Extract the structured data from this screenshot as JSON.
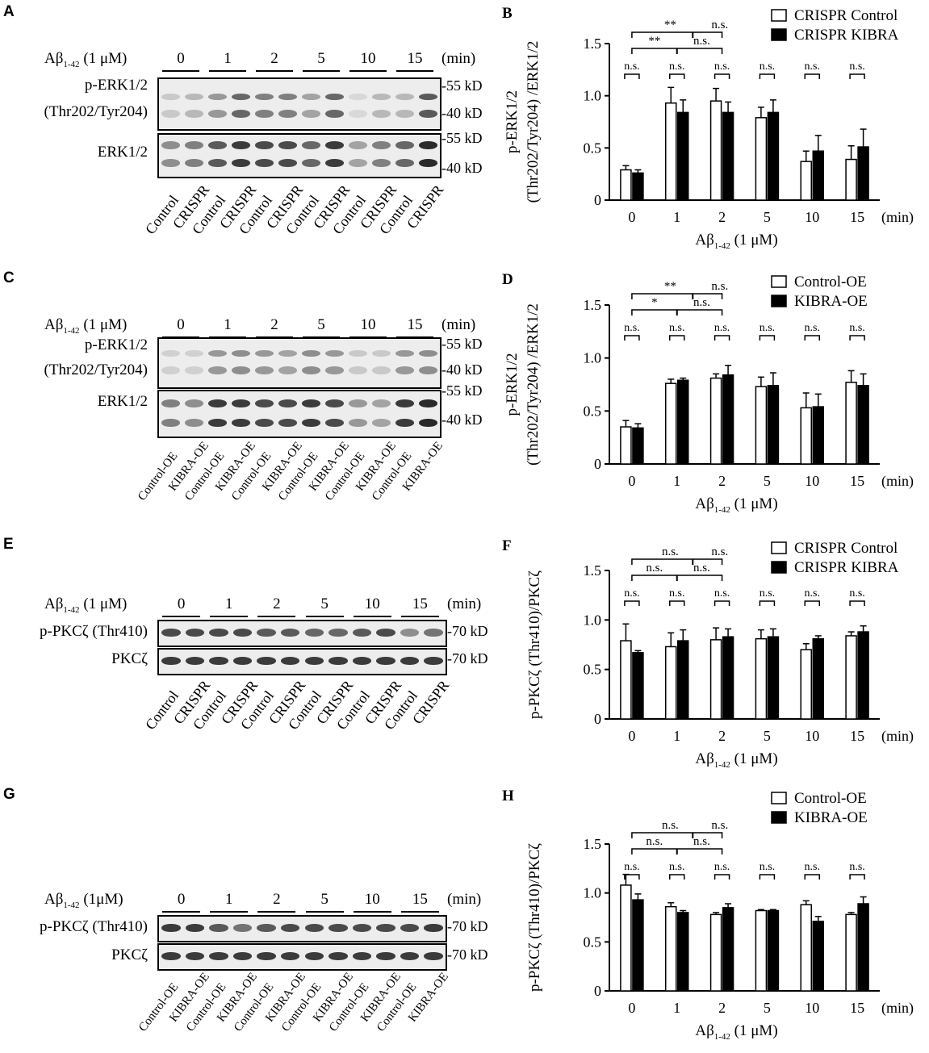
{
  "panels": [
    {
      "letter": "A",
      "treatment": "Aβ",
      "treatment_sub": "1-42",
      "conc": "(1 μM)",
      "unit": "(min)",
      "times": [
        "0",
        "1",
        "2",
        "5",
        "10",
        "15"
      ],
      "rows": [
        {
          "label1": "p-ERK1/2",
          "label2": "(Thr202/Tyr204)",
          "markers": [
            "-55 kD",
            "-40 kD"
          ]
        },
        {
          "label1": "ERK1/2",
          "label2": "",
          "markers": [
            "-55 kD",
            "-40 kD"
          ]
        }
      ],
      "lanes": [
        "Control",
        "CRISPR",
        "Control",
        "CRISPR",
        "Control",
        "CRISPR",
        "Control",
        "CRISPR",
        "Control",
        "CRISPR",
        "Control",
        "CRISPR"
      ]
    },
    {
      "letter": "C",
      "treatment": "Aβ",
      "treatment_sub": "1-42",
      "conc": "(1 μM)",
      "unit": "(min)",
      "times": [
        "0",
        "1",
        "2",
        "5",
        "10",
        "15"
      ],
      "rows": [
        {
          "label1": "p-ERK1/2",
          "label2": "(Thr202/Tyr204)",
          "markers": [
            "-55 kD",
            "-40 kD"
          ]
        },
        {
          "label1": "ERK1/2",
          "label2": "",
          "markers": [
            "-55 kD",
            "-40 kD"
          ]
        }
      ],
      "lanes": [
        "Control-OE",
        "KIBRA-OE",
        "Control-OE",
        "KIBRA-OE",
        "Control-OE",
        "KIBRA-OE",
        "Control-OE",
        "KIBRA-OE",
        "Control-OE",
        "KIBRA-OE",
        "Control-OE",
        "KIBRA-OE"
      ]
    },
    {
      "letter": "E",
      "treatment": "Aβ",
      "treatment_sub": "1-42",
      "conc": "(1 μM)",
      "unit": "(min)",
      "times": [
        "0",
        "1",
        "2",
        "5",
        "10",
        "15"
      ],
      "rows": [
        {
          "label1": "p-PKCζ (Thr410)",
          "label2": "",
          "markers": [
            "-70 kD"
          ]
        },
        {
          "label1": "PKCζ",
          "label2": "",
          "markers": [
            "-70 kD"
          ]
        }
      ],
      "lanes": [
        "Control",
        "CRISPR",
        "Control",
        "CRISPR",
        "Control",
        "CRISPR",
        "Control",
        "CRISPR",
        "Control",
        "CRISPR",
        "Control",
        "CRISPR"
      ]
    },
    {
      "letter": "G",
      "treatment": "Aβ",
      "treatment_sub": "1-42",
      "conc": "(1μM)",
      "unit": "(min)",
      "times": [
        "0",
        "1",
        "2",
        "5",
        "10",
        "15"
      ],
      "rows": [
        {
          "label1": "p-PKCζ (Thr410)",
          "label2": "",
          "markers": [
            "-70 kD"
          ]
        },
        {
          "label1": "PKCζ",
          "label2": "",
          "markers": [
            "-70 kD"
          ]
        }
      ],
      "lanes": [
        "Control-OE",
        "KIBRA-OE",
        "Control-OE",
        "KIBRA-OE",
        "Control-OE",
        "KIBRA-OE",
        "Control-OE",
        "KIBRA-OE",
        "Control-OE",
        "KIBRA-OE",
        "Control-OE",
        "KIBRA-OE"
      ]
    }
  ],
  "chart_data": [
    {
      "panel": "B",
      "type": "bar",
      "categories": [
        "0",
        "1",
        "2",
        "5",
        "10",
        "15"
      ],
      "x_unit": "(min)",
      "xlabel_main": "Aβ",
      "xlabel_sub": "1-42",
      "xlabel_tail": "(1 μM)",
      "ylabel_line1": "p-ERK1/2",
      "ylabel_line2": "(Thr202/Tyr204) /ERK1/2",
      "ylim": [
        0,
        1.5
      ],
      "yticks": [
        "0",
        "0.5",
        "1.0",
        "1.5"
      ],
      "legend": [
        "CRISPR Control",
        "CRISPR KIBRA"
      ],
      "series": [
        {
          "name": "CRISPR Control",
          "values": [
            0.29,
            0.93,
            0.95,
            0.79,
            0.37,
            0.39
          ],
          "errors": [
            0.04,
            0.15,
            0.12,
            0.1,
            0.1,
            0.13
          ],
          "fill": "#ffffff"
        },
        {
          "name": "CRISPR KIBRA",
          "values": [
            0.26,
            0.84,
            0.84,
            0.84,
            0.47,
            0.51
          ],
          "errors": [
            0.03,
            0.12,
            0.1,
            0.12,
            0.15,
            0.17
          ],
          "fill": "#000000"
        }
      ],
      "pair_sig": [
        "n.s.",
        "n.s.",
        "n.s.",
        "n.s.",
        "n.s.",
        "n.s."
      ],
      "brackets_upper": [
        "**",
        "n.s."
      ],
      "brackets_lower": [
        "**",
        "n.s."
      ]
    },
    {
      "panel": "D",
      "type": "bar",
      "categories": [
        "0",
        "1",
        "2",
        "5",
        "10",
        "15"
      ],
      "x_unit": "(min)",
      "xlabel_main": "Aβ",
      "xlabel_sub": "1-42",
      "xlabel_tail": "(1 μM)",
      "ylabel_line1": "p-ERK1/2",
      "ylabel_line2": "(Thr202/Tyr204) /ERK1/2",
      "ylim": [
        0,
        1.5
      ],
      "yticks": [
        "0",
        "0.5",
        "1.0",
        "1.5"
      ],
      "legend": [
        "Control-OE",
        "KIBRA-OE"
      ],
      "series": [
        {
          "name": "Control-OE",
          "values": [
            0.35,
            0.76,
            0.81,
            0.73,
            0.53,
            0.77
          ],
          "errors": [
            0.06,
            0.04,
            0.04,
            0.09,
            0.14,
            0.11
          ],
          "fill": "#ffffff"
        },
        {
          "name": "KIBRA-OE",
          "values": [
            0.34,
            0.79,
            0.84,
            0.74,
            0.54,
            0.74
          ],
          "errors": [
            0.04,
            0.02,
            0.09,
            0.12,
            0.12,
            0.11
          ],
          "fill": "#000000"
        }
      ],
      "pair_sig": [
        "n.s.",
        "n.s.",
        "n.s.",
        "n.s.",
        "n.s.",
        "n.s."
      ],
      "brackets_upper": [
        "**",
        "n.s."
      ],
      "brackets_lower": [
        "*",
        "n.s."
      ]
    },
    {
      "panel": "F",
      "type": "bar",
      "categories": [
        "0",
        "1",
        "2",
        "5",
        "10",
        "15"
      ],
      "x_unit": "(min)",
      "xlabel_main": "Aβ",
      "xlabel_sub": "1-42",
      "xlabel_tail": "(1 μM)",
      "ylabel_line1": "p-PKCζ (Thr410)/PKCζ",
      "ylabel_line2": "",
      "ylim": [
        0,
        1.5
      ],
      "yticks": [
        "0",
        "0.5",
        "1.0",
        "1.5"
      ],
      "legend": [
        "CRISPR Control",
        "CRISPR KIBRA"
      ],
      "series": [
        {
          "name": "CRISPR Control",
          "values": [
            0.79,
            0.73,
            0.8,
            0.81,
            0.7,
            0.84
          ],
          "errors": [
            0.17,
            0.14,
            0.12,
            0.09,
            0.06,
            0.04
          ],
          "fill": "#ffffff"
        },
        {
          "name": "CRISPR KIBRA",
          "values": [
            0.67,
            0.79,
            0.83,
            0.83,
            0.81,
            0.88
          ],
          "errors": [
            0.02,
            0.11,
            0.08,
            0.08,
            0.03,
            0.06
          ],
          "fill": "#000000"
        }
      ],
      "pair_sig": [
        "n.s.",
        "n.s.",
        "n.s.",
        "n.s.",
        "n.s.",
        "n.s."
      ],
      "brackets_upper": [
        "n.s.",
        "n.s."
      ],
      "brackets_lower": [
        "n.s.",
        "n.s."
      ]
    },
    {
      "panel": "H",
      "type": "bar",
      "categories": [
        "0",
        "1",
        "2",
        "5",
        "10",
        "15"
      ],
      "x_unit": "(min)",
      "xlabel_main": "Aβ",
      "xlabel_sub": "1-42",
      "xlabel_tail": "(1 μM)",
      "ylabel_line1": "p-PKCζ (Thr410)/PKCζ",
      "ylabel_line2": "",
      "ylim": [
        0,
        1.5
      ],
      "yticks": [
        "0",
        "0.5",
        "1.0",
        "1.5"
      ],
      "legend": [
        "Control-OE",
        "KIBRA-OE"
      ],
      "series": [
        {
          "name": "Control-OE",
          "values": [
            1.08,
            0.86,
            0.78,
            0.82,
            0.88,
            0.78
          ],
          "errors": [
            0.11,
            0.04,
            0.02,
            0.01,
            0.04,
            0.02
          ],
          "fill": "#ffffff"
        },
        {
          "name": "KIBRA-OE",
          "values": [
            0.93,
            0.8,
            0.85,
            0.82,
            0.71,
            0.89
          ],
          "errors": [
            0.06,
            0.02,
            0.04,
            0.01,
            0.05,
            0.07
          ],
          "fill": "#000000"
        }
      ],
      "pair_sig": [
        "n.s.",
        "n.s.",
        "n.s.",
        "n.s.",
        "n.s.",
        "n.s."
      ],
      "brackets_upper": [
        "n.s.",
        "n.s."
      ],
      "brackets_lower": [
        "n.s.",
        "n.s."
      ]
    }
  ]
}
